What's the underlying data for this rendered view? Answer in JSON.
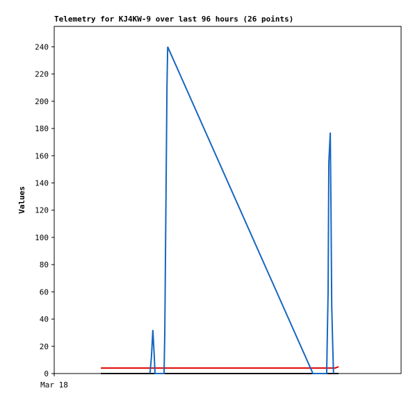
{
  "chart_data": {
    "type": "line",
    "title": "Telemetry for KJ4KW-9 over last 96 hours (26 points)",
    "y_label": "Values",
    "xlim": [
      0,
      96
    ],
    "xticks": [
      {
        "value": 0,
        "label": "Mar 18"
      }
    ],
    "ylim": [
      0,
      255
    ],
    "yticks": [
      0,
      20,
      40,
      60,
      80,
      100,
      120,
      140,
      160,
      180,
      200,
      220,
      240
    ],
    "series": [
      {
        "color": "#1565c0",
        "x": [
          26.5,
          26.9,
          27.3,
          27.7,
          27.9,
          30.4,
          30.6,
          30.8,
          31.0,
          31.2,
          31.4,
          71.6,
          75.4,
          75.8,
          76.0,
          76.4,
          76.6,
          76.8,
          77.1,
          77.3
        ],
        "values": [
          0,
          12,
          32,
          12,
          0,
          0,
          30,
          90,
          150,
          210,
          240,
          0,
          0,
          60,
          155,
          177,
          120,
          50,
          18,
          0
        ]
      },
      {
        "color": "#e00000",
        "x": [
          12.9,
          77.7,
          78.7
        ],
        "values": [
          4,
          4,
          5
        ]
      },
      {
        "color": "#000000",
        "x": [
          12.9,
          78.7
        ],
        "values": [
          0,
          0
        ]
      }
    ]
  }
}
